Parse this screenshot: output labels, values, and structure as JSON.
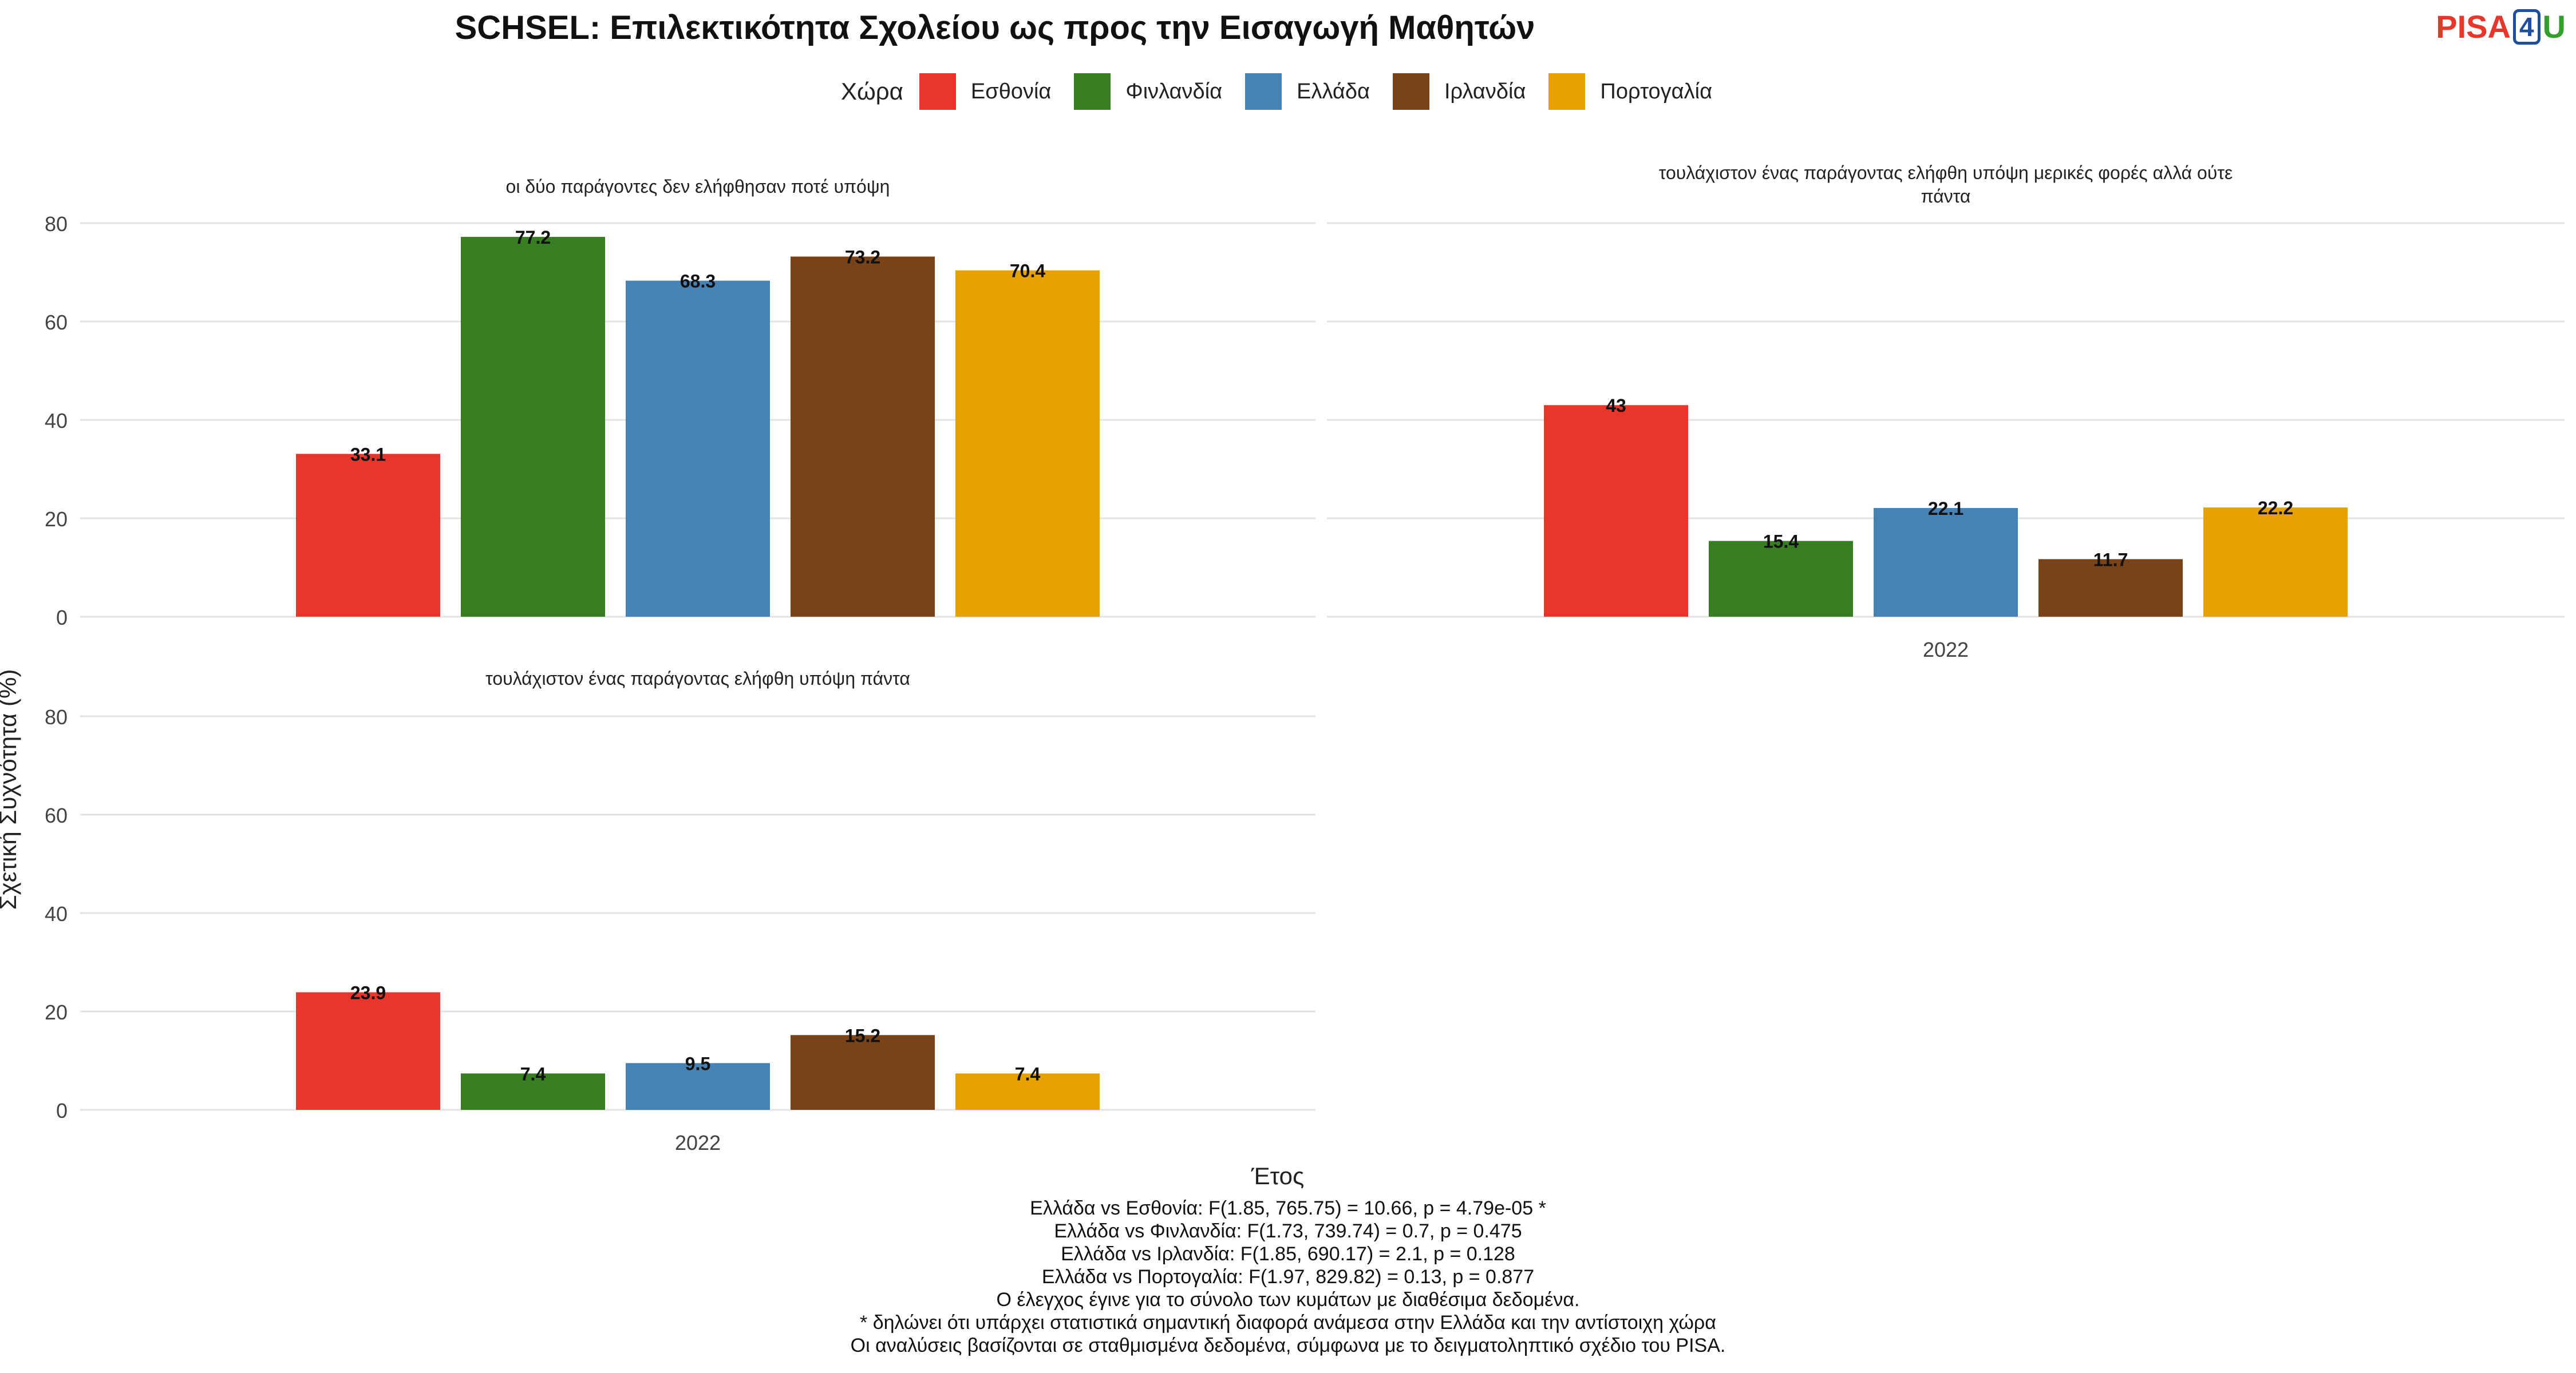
{
  "title": "SCHSEL: Επιλεκτικότητα Σχολείου ως προς την Εισαγωγή Μαθητών",
  "logo": {
    "part1": "PISA",
    "part2": "4",
    "part3": "U"
  },
  "legend": {
    "title": "Χώρα",
    "items": [
      {
        "label": "Εσθονία",
        "color": "#e8362b"
      },
      {
        "label": "Φινλανδία",
        "color": "#377e22"
      },
      {
        "label": "Ελλάδα",
        "color": "#4682b4"
      },
      {
        "label": "Ιρλανδία",
        "color": "#7a4317"
      },
      {
        "label": "Πορτογαλία",
        "color": "#e6a100"
      }
    ]
  },
  "chart_data": {
    "type": "bar",
    "ylabel": "Σχετική Συχνότητα (%)",
    "xlabel": "Έτος",
    "ylim": [
      0,
      80
    ],
    "yticks": [
      0,
      20,
      40,
      60,
      80
    ],
    "grid": true,
    "legend_position": "top",
    "categories": [
      "2022"
    ],
    "series_names": [
      "Εσθονία",
      "Φινλανδία",
      "Ελλάδα",
      "Ιρλανδία",
      "Πορτογαλία"
    ],
    "panels": [
      {
        "title": "οι δύο παράγοντες δεν ελήφθησαν ποτέ υπόψη",
        "values": [
          33.1,
          77.2,
          68.3,
          73.2,
          70.4
        ],
        "labels": [
          "33.1",
          "77.2",
          "68.3",
          "73.2",
          "70.4"
        ]
      },
      {
        "title": "τουλάχιστον ένας παράγοντας ελήφθη υπόψη μερικές φορές αλλά ούτε πάντα",
        "values": [
          43,
          15.4,
          22.1,
          11.7,
          22.2
        ],
        "labels": [
          "43",
          "15.4",
          "22.1",
          "11.7",
          "22.2"
        ]
      },
      {
        "title": "τουλάχιστον ένας παράγοντας ελήφθη υπόψη πάντα",
        "values": [
          23.9,
          7.4,
          9.5,
          15.2,
          7.4
        ],
        "labels": [
          "23.9",
          "7.4",
          "9.5",
          "15.2",
          "7.4"
        ]
      }
    ]
  },
  "notes": [
    "Ελλάδα vs Εσθονία: F(1.85, 765.75) = 10.66, p = 4.79e-05 *",
    "Ελλάδα vs Φινλανδία: F(1.73, 739.74) = 0.7, p = 0.475",
    "Ελλάδα vs Ιρλανδία: F(1.85, 690.17) = 2.1, p = 0.128",
    "Ελλάδα vs Πορτογαλία: F(1.97, 829.82) = 0.13, p = 0.877",
    "Ο έλεγχος έγινε για το σύνολο των κυμάτων με διαθέσιμα δεδομένα.",
    "* δηλώνει ότι υπάρχει στατιστικά σημαντική διαφορά ανάμεσα στην Ελλάδα και την αντίστοιχη χώρα",
    "Οι αναλύσεις βασίζονται σε σταθμισμένα δεδομένα, σύμφωνα με το δειγματοληπτικό σχέδιο του PISA."
  ]
}
